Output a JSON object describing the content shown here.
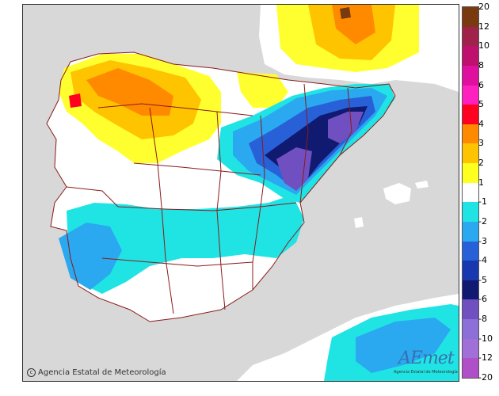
{
  "legend": {
    "ticks": [
      "20",
      "12",
      "10",
      "8",
      "6",
      "5",
      "4",
      "3",
      "2",
      "1",
      "-1",
      "-2",
      "-3",
      "-4",
      "-5",
      "-6",
      "-8",
      "-10",
      "-12",
      "-20"
    ],
    "colors": [
      "#7a3a10",
      "#a0224a",
      "#c0106e",
      "#e0109e",
      "#ff20c0",
      "#ff0020",
      "#ff8a00",
      "#ffc400",
      "#ffff20",
      "#ffffff",
      "#20e4e4",
      "#2aa8f0",
      "#2860d8",
      "#1838b0",
      "#101a70",
      "#7050c0",
      "#8c70d8",
      "#a070d8",
      "#b050c8"
    ]
  },
  "colors": {
    "sea": "#d8d8d8",
    "land": "#ffffff",
    "border": "#8b1a1a"
  },
  "copyright": "Agencia Estatal de Meteorología",
  "logo": {
    "name": "AEmet",
    "subtitle": "Agencia Estatal de Meteorología"
  }
}
